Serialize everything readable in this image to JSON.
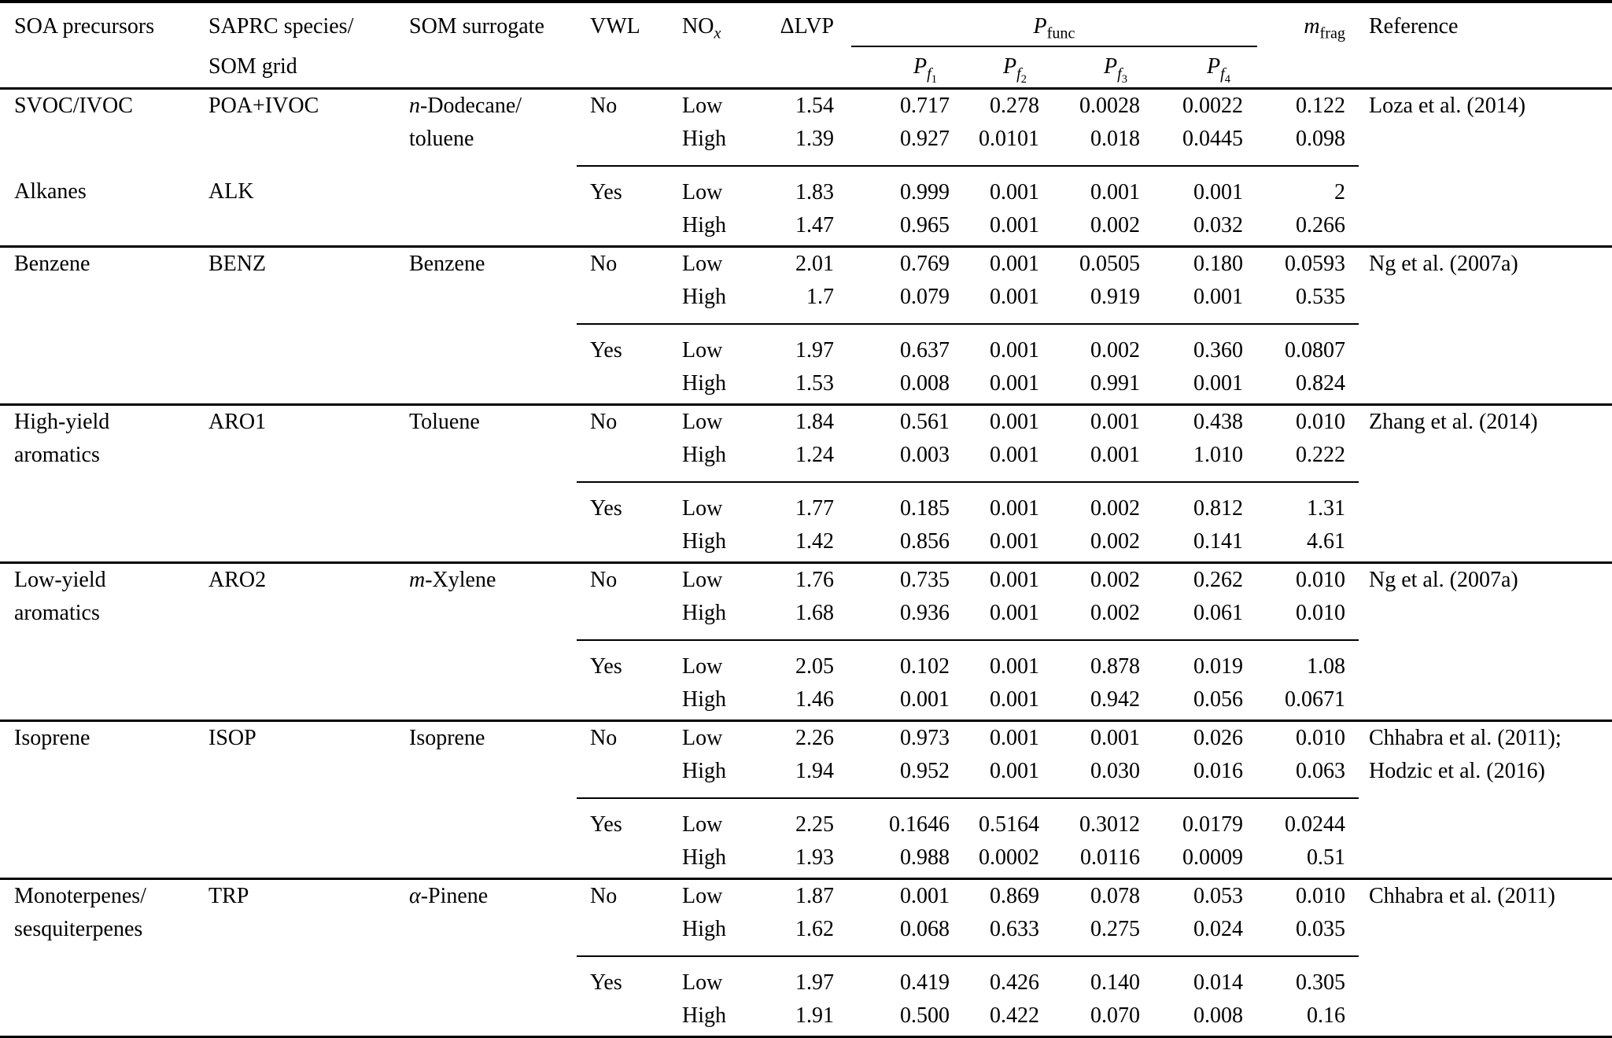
{
  "table": {
    "headers": {
      "soa_precursors": "SOA precursors",
      "saprc_line1": "SAPRC species/",
      "saprc_line2": "SOM grid",
      "som_surrogate": "SOM surrogate",
      "vwl": "VWL",
      "nox": {
        "base": "NO",
        "sub": "x"
      },
      "dlvp": "ΔLVP",
      "pfunc": {
        "base": "P",
        "sub": "func"
      },
      "pf": [
        {
          "base": "P",
          "sub": "f",
          "index": "1"
        },
        {
          "base": "P",
          "sub": "f",
          "index": "2"
        },
        {
          "base": "P",
          "sub": "f",
          "index": "3"
        },
        {
          "base": "P",
          "sub": "f",
          "index": "4"
        }
      ],
      "mfrag": {
        "base": "m",
        "sub": "frag"
      },
      "reference": "Reference"
    },
    "groups": [
      {
        "blocks": [
          {
            "precursor": [
              "SVOC/IVOC"
            ],
            "saprc": [
              "POA+IVOC"
            ],
            "surrogate": [
              [
                {
                  "t": "n",
                  "i": 1
                },
                {
                  "t": "-Dodecane/"
                }
              ],
              [
                {
                  "t": "toluene"
                }
              ]
            ],
            "vwl": "No",
            "rows": [
              {
                "nox": "Low",
                "dlvp": "1.54",
                "pf": [
                  "0.717",
                  "0.278",
                  "0.0028",
                  "0.0022"
                ],
                "mfrag": "0.122"
              },
              {
                "nox": "High",
                "dlvp": "1.39",
                "pf": [
                  "0.927",
                  "0.0101",
                  "0.018",
                  "0.0445"
                ],
                "mfrag": "0.098"
              }
            ],
            "reference": [
              "Loza et al. (2014)"
            ]
          },
          {
            "precursor": [
              "Alkanes"
            ],
            "saprc": [
              "ALK"
            ],
            "surrogate": [],
            "vwl": "Yes",
            "rows": [
              {
                "nox": "Low",
                "dlvp": "1.83",
                "pf": [
                  "0.999",
                  "0.001",
                  "0.001",
                  "0.001"
                ],
                "mfrag": "2"
              },
              {
                "nox": "High",
                "dlvp": "1.47",
                "pf": [
                  "0.965",
                  "0.001",
                  "0.002",
                  "0.032"
                ],
                "mfrag": "0.266"
              }
            ],
            "reference": []
          }
        ]
      },
      {
        "blocks": [
          {
            "precursor": [
              "Benzene"
            ],
            "saprc": [
              "BENZ"
            ],
            "surrogate": [
              [
                {
                  "t": "Benzene"
                }
              ]
            ],
            "vwl": "No",
            "rows": [
              {
                "nox": "Low",
                "dlvp": "2.01",
                "pf": [
                  "0.769",
                  "0.001",
                  "0.0505",
                  "0.180"
                ],
                "mfrag": "0.0593"
              },
              {
                "nox": "High",
                "dlvp": "1.7",
                "pf": [
                  "0.079",
                  "0.001",
                  "0.919",
                  "0.001"
                ],
                "mfrag": "0.535"
              }
            ],
            "reference": [
              "Ng et al. (2007a)"
            ]
          },
          {
            "precursor": [],
            "saprc": [],
            "surrogate": [],
            "vwl": "Yes",
            "rows": [
              {
                "nox": "Low",
                "dlvp": "1.97",
                "pf": [
                  "0.637",
                  "0.001",
                  "0.002",
                  "0.360"
                ],
                "mfrag": "0.0807"
              },
              {
                "nox": "High",
                "dlvp": "1.53",
                "pf": [
                  "0.008",
                  "0.001",
                  "0.991",
                  "0.001"
                ],
                "mfrag": "0.824"
              }
            ],
            "reference": []
          }
        ]
      },
      {
        "blocks": [
          {
            "precursor": [
              "High-yield",
              "aromatics"
            ],
            "saprc": [
              "ARO1"
            ],
            "surrogate": [
              [
                {
                  "t": "Toluene"
                }
              ]
            ],
            "vwl": "No",
            "rows": [
              {
                "nox": "Low",
                "dlvp": "1.84",
                "pf": [
                  "0.561",
                  "0.001",
                  "0.001",
                  "0.438"
                ],
                "mfrag": "0.010"
              },
              {
                "nox": "High",
                "dlvp": "1.24",
                "pf": [
                  "0.003",
                  "0.001",
                  "0.001",
                  "1.010"
                ],
                "mfrag": "0.222"
              }
            ],
            "reference": [
              "Zhang et al. (2014)"
            ]
          },
          {
            "precursor": [],
            "saprc": [],
            "surrogate": [],
            "vwl": "Yes",
            "rows": [
              {
                "nox": "Low",
                "dlvp": "1.77",
                "pf": [
                  "0.185",
                  "0.001",
                  "0.002",
                  "0.812"
                ],
                "mfrag": "1.31"
              },
              {
                "nox": "High",
                "dlvp": "1.42",
                "pf": [
                  "0.856",
                  "0.001",
                  "0.002",
                  "0.141"
                ],
                "mfrag": "4.61"
              }
            ],
            "reference": []
          }
        ]
      },
      {
        "blocks": [
          {
            "precursor": [
              "Low-yield",
              "aromatics"
            ],
            "saprc": [
              "ARO2"
            ],
            "surrogate": [
              [
                {
                  "t": "m",
                  "i": 1
                },
                {
                  "t": "-Xylene"
                }
              ]
            ],
            "vwl": "No",
            "rows": [
              {
                "nox": "Low",
                "dlvp": "1.76",
                "pf": [
                  "0.735",
                  "0.001",
                  "0.002",
                  "0.262"
                ],
                "mfrag": "0.010"
              },
              {
                "nox": "High",
                "dlvp": "1.68",
                "pf": [
                  "0.936",
                  "0.001",
                  "0.002",
                  "0.061"
                ],
                "mfrag": "0.010"
              }
            ],
            "reference": [
              "Ng et al. (2007a)"
            ]
          },
          {
            "precursor": [],
            "saprc": [],
            "surrogate": [],
            "vwl": "Yes",
            "rows": [
              {
                "nox": "Low",
                "dlvp": "2.05",
                "pf": [
                  "0.102",
                  "0.001",
                  "0.878",
                  "0.019"
                ],
                "mfrag": "1.08"
              },
              {
                "nox": "High",
                "dlvp": "1.46",
                "pf": [
                  "0.001",
                  "0.001",
                  "0.942",
                  "0.056"
                ],
                "mfrag": "0.0671"
              }
            ],
            "reference": []
          }
        ]
      },
      {
        "blocks": [
          {
            "precursor": [
              "Isoprene"
            ],
            "saprc": [
              "ISOP"
            ],
            "surrogate": [
              [
                {
                  "t": "Isoprene"
                }
              ]
            ],
            "vwl": "No",
            "rows": [
              {
                "nox": "Low",
                "dlvp": "2.26",
                "pf": [
                  "0.973",
                  "0.001",
                  "0.001",
                  "0.026"
                ],
                "mfrag": "0.010"
              },
              {
                "nox": "High",
                "dlvp": "1.94",
                "pf": [
                  "0.952",
                  "0.001",
                  "0.030",
                  "0.016"
                ],
                "mfrag": "0.063"
              }
            ],
            "reference": [
              "Chhabra et al. (2011);",
              "Hodzic et al. (2016)"
            ]
          },
          {
            "precursor": [],
            "saprc": [],
            "surrogate": [],
            "vwl": "Yes",
            "rows": [
              {
                "nox": "Low",
                "dlvp": "2.25",
                "pf": [
                  "0.1646",
                  "0.5164",
                  "0.3012",
                  "0.0179"
                ],
                "mfrag": "0.0244"
              },
              {
                "nox": "High",
                "dlvp": "1.93",
                "pf": [
                  "0.988",
                  "0.0002",
                  "0.0116",
                  "0.0009"
                ],
                "mfrag": "0.51"
              }
            ],
            "reference": []
          }
        ]
      },
      {
        "blocks": [
          {
            "precursor": [
              "Monoterpenes/",
              "sesquiterpenes"
            ],
            "saprc": [
              "TRP"
            ],
            "surrogate": [
              [
                {
                  "t": "α",
                  "i": 1
                },
                {
                  "t": "-Pinene"
                }
              ]
            ],
            "vwl": "No",
            "rows": [
              {
                "nox": "Low",
                "dlvp": "1.87",
                "pf": [
                  "0.001",
                  "0.869",
                  "0.078",
                  "0.053"
                ],
                "mfrag": "0.010"
              },
              {
                "nox": "High",
                "dlvp": "1.62",
                "pf": [
                  "0.068",
                  "0.633",
                  "0.275",
                  "0.024"
                ],
                "mfrag": "0.035"
              }
            ],
            "reference": [
              "Chhabra et al. (2011)"
            ]
          },
          {
            "precursor": [],
            "saprc": [],
            "surrogate": [],
            "vwl": "Yes",
            "rows": [
              {
                "nox": "Low",
                "dlvp": "1.97",
                "pf": [
                  "0.419",
                  "0.426",
                  "0.140",
                  "0.014"
                ],
                "mfrag": "0.305"
              },
              {
                "nox": "High",
                "dlvp": "1.91",
                "pf": [
                  "0.500",
                  "0.422",
                  "0.070",
                  "0.008"
                ],
                "mfrag": "0.16"
              }
            ],
            "reference": []
          }
        ]
      }
    ]
  }
}
